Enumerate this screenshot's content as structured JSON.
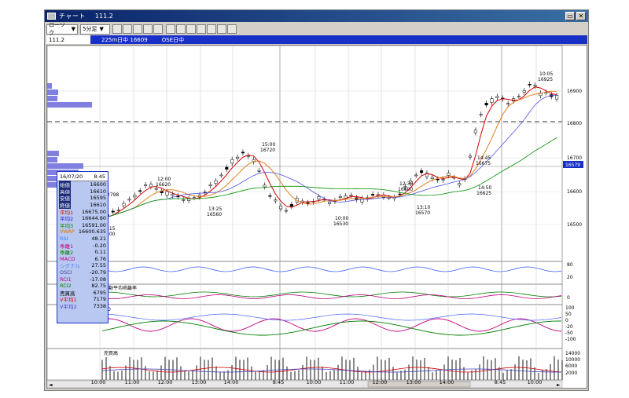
{
  "window": {
    "title": "チャート",
    "code": "111.2"
  },
  "toolbar": {
    "chart_type": "ローソク",
    "interval": "5分足",
    "icons": [
      "candle-icon",
      "bar-icon",
      "line-icon",
      "volume-icon",
      "compare-icon",
      "zoom-icon",
      "trend-icon",
      "cursor-icon",
      "draw-icon",
      "pen-icon",
      "print-icon",
      "help-icon"
    ]
  },
  "infobar": {
    "code": "111.2",
    "item1": "225m日中 16609",
    "item2": "OSE日中"
  },
  "panel": {
    "date": "16/07/20",
    "time": "8:45",
    "rows": [
      {
        "label": "始値",
        "value": "16600",
        "color": "#000000",
        "dark": true
      },
      {
        "label": "高値",
        "value": "16610",
        "color": "#000000",
        "dark": true
      },
      {
        "label": "安値",
        "value": "16595",
        "color": "#000000",
        "dark": true
      },
      {
        "label": "終値",
        "value": "16610",
        "color": "#000000",
        "dark": true
      },
      {
        "label": "平均1",
        "value": "16675.00",
        "color": "#d40000",
        "dark": false
      },
      {
        "label": "平均2",
        "value": "16644.80",
        "color": "#2020c8",
        "dark": false
      },
      {
        "label": "平均3",
        "value": "16591.00",
        "color": "#008000",
        "dark": false
      },
      {
        "label": "VWAP",
        "value": "16600.635",
        "color": "#e07000",
        "dark": false
      },
      {
        "label": "RSI",
        "value": "48.21",
        "color": "#4080ff",
        "dark": false
      },
      {
        "label": "乖離1",
        "value": "-0.20",
        "color": "#c00080",
        "dark": false
      },
      {
        "label": "乖離2",
        "value": "0.11",
        "color": "#008000",
        "dark": false
      },
      {
        "label": "MACD",
        "value": "6.76",
        "color": "#c00080",
        "dark": false
      },
      {
        "label": "シグナル",
        "value": "27.55",
        "color": "#4080ff",
        "dark": false
      },
      {
        "label": "OSCI",
        "value": "-20.79",
        "color": "#4040a0",
        "dark": false
      },
      {
        "label": "RCI1",
        "value": "-17.08",
        "color": "#c00080",
        "dark": false
      },
      {
        "label": "RCI2",
        "value": "82.75",
        "color": "#008000",
        "dark": false
      },
      {
        "label": "売買高",
        "value": "6795",
        "color": "#000000",
        "dark": false
      },
      {
        "label": "V平均1",
        "value": "7179",
        "color": "#d40000",
        "dark": false
      },
      {
        "label": "V平均2",
        "value": "7338",
        "color": "#4040c0",
        "dark": false
      }
    ]
  },
  "price_labels": [
    "16900",
    "16800",
    "16700",
    "16600",
    "16500"
  ],
  "current_price": "16579",
  "annotations": [
    {
      "time": "12:00",
      "price": "16620"
    },
    {
      "time": "15:00",
      "price": "16720"
    },
    {
      "time": "13:25",
      "price": "16560"
    },
    {
      "time": "10:00",
      "price": "16530"
    },
    {
      "time": "12:30",
      "price": "16600"
    },
    {
      "time": "13:10",
      "price": "16570"
    },
    {
      "time": "14:45",
      "price": "16675"
    },
    {
      "time": "14:50",
      "price": "16625"
    },
    {
      "time": "10:05",
      "price": "16925"
    }
  ],
  "left_partial": [
    "115",
    "500"
  ],
  "left_value_partial": "2798",
  "pane_labels": {
    "kairi": "移動平均乖離率",
    "macd": "CD",
    "volume": "売買高"
  },
  "rsi_ticks": [
    "80",
    "20"
  ],
  "kairi_ticks": [
    "0"
  ],
  "macd_ticks": [
    "100",
    "50",
    "0",
    "-20",
    "-50",
    "-100"
  ],
  "volume_ticks": [
    "14000",
    "10000",
    "6000",
    "2000"
  ],
  "x_labels": [
    "10:00",
    "11:00",
    "12:00",
    "13:00",
    "14:00",
    "8:45",
    "10:00",
    "11:00",
    "12:00",
    "13:00",
    "14:00",
    "8:45",
    "10:00"
  ],
  "colors": {
    "ma1": "#d40000",
    "ma2": "#5050e0",
    "ma3": "#009000",
    "vwap": "#e08020"
  }
}
